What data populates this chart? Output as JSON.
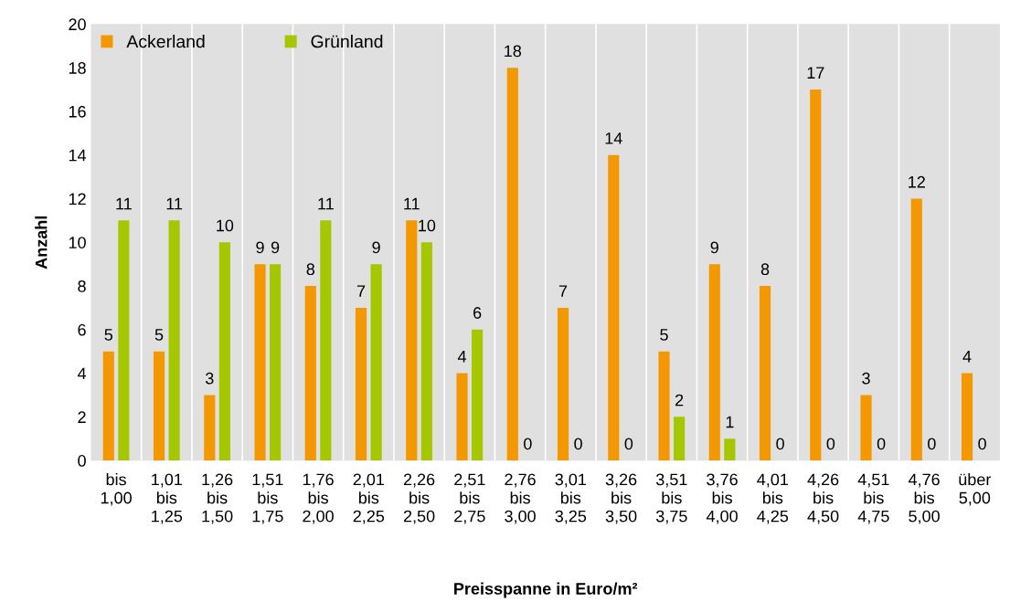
{
  "chart_data": {
    "type": "bar",
    "xlabel": "Preisspanne in Euro/m²",
    "ylabel": "Anzahl",
    "categories": [
      "bis\n1,00",
      "1,01\nbis\n1,25",
      "1,26\nbis\n1,50",
      "1,51\nbis\n1,75",
      "1,76\nbis\n2,00",
      "2,01\nbis\n2,25",
      "2,26\nbis\n2,50",
      "2,51\nbis\n2,75",
      "2,76\nbis\n3,00",
      "3,01\nbis\n3,25",
      "3,26\nbis\n3,50",
      "3,51\nbis\n3,75",
      "3,76\nbis\n4,00",
      "4,01\nbis\n4,25",
      "4,26\nbis\n4,50",
      "4,51\nbis\n4,75",
      "4,76\nbis\n5,00",
      "über\n5,00"
    ],
    "series": [
      {
        "name": "Ackerland",
        "color": "#f39800",
        "values": [
          5,
          5,
          3,
          9,
          8,
          7,
          11,
          4,
          18,
          7,
          14,
          5,
          9,
          8,
          17,
          3,
          12,
          4
        ]
      },
      {
        "name": "Grünland",
        "color": "#a5c700",
        "values": [
          11,
          11,
          10,
          9,
          11,
          9,
          10,
          6,
          0,
          0,
          0,
          2,
          1,
          0,
          0,
          0,
          0,
          0
        ]
      }
    ],
    "ylim": [
      0,
      20
    ],
    "yticks": [
      0,
      2,
      4,
      6,
      8,
      10,
      12,
      14,
      16,
      18,
      20
    ],
    "grid": "x",
    "legend": "top left",
    "data_labels": true
  }
}
